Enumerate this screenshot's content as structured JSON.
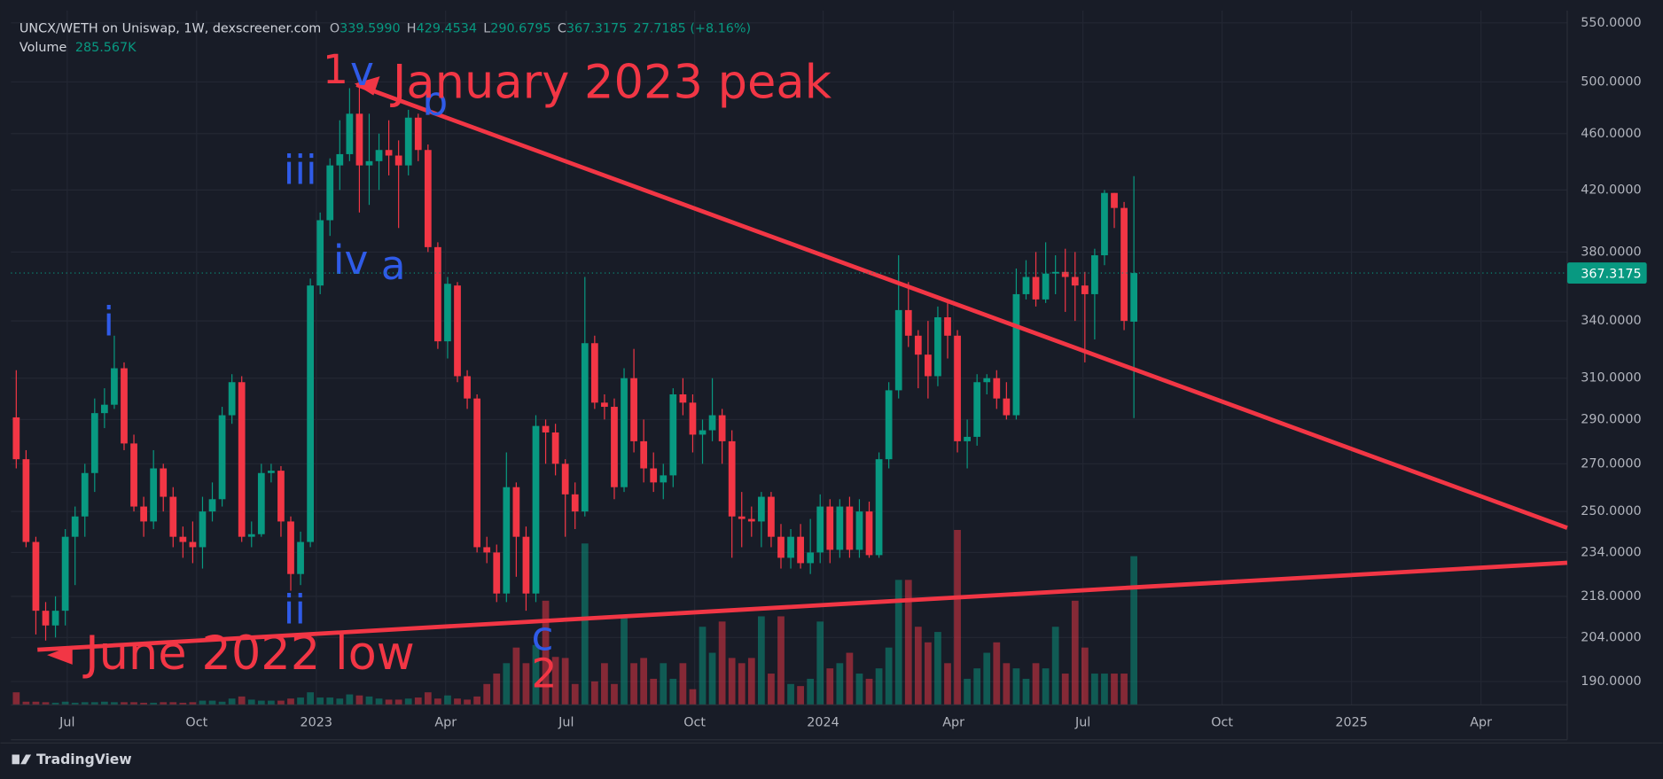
{
  "header": {
    "symbol": "UNCX/WETH on Uniswap, 1W, dexscreener.com",
    "o_label": "O",
    "open": "339.5990",
    "h_label": "H",
    "high": "429.4534",
    "l_label": "L",
    "low": "290.6795",
    "c_label": "C",
    "close": "367.3175",
    "change": "27.7185 (+8.16%)",
    "volume_label": "Volume",
    "volume": "285.567K"
  },
  "footer": {
    "brand": "TradingView"
  },
  "chart_data": {
    "type": "candlestick",
    "x": [
      0,
      1,
      2,
      3,
      4,
      5,
      6,
      7,
      8,
      9,
      10,
      11,
      12,
      13,
      14,
      15,
      16,
      17,
      18,
      19,
      20,
      21,
      22,
      23,
      24,
      25,
      26,
      27,
      28,
      29,
      30,
      31,
      32,
      33,
      34,
      35,
      36,
      37,
      38,
      39,
      40,
      41,
      42,
      43,
      44,
      45,
      46,
      47,
      48,
      49,
      50,
      51,
      52,
      53,
      54,
      55,
      56,
      57,
      58,
      59,
      60,
      61,
      62,
      63,
      64,
      65,
      66,
      67,
      68,
      69,
      70,
      71,
      72,
      73,
      74,
      75,
      76,
      77,
      78,
      79,
      80,
      81,
      82,
      83,
      84,
      85,
      86,
      87,
      88,
      89,
      90,
      91,
      92,
      93,
      94,
      95,
      96,
      97,
      98,
      99,
      100,
      101,
      102,
      103,
      104,
      105,
      106,
      107,
      108,
      109,
      110,
      111,
      112,
      113,
      114
    ],
    "open": [
      291,
      272,
      238,
      213,
      208,
      213,
      240,
      248,
      266,
      293,
      297,
      315,
      279,
      252,
      246,
      268,
      256,
      240,
      238,
      236,
      250,
      255,
      292,
      308,
      240,
      241,
      266,
      267,
      246,
      226,
      238,
      360,
      400,
      437,
      445,
      475,
      437,
      440,
      448,
      444,
      437,
      472,
      448,
      383,
      329,
      360,
      311,
      300,
      236,
      234,
      219,
      260,
      240,
      219,
      287,
      284,
      270,
      257,
      250,
      328,
      298,
      296,
      260,
      310,
      280,
      268,
      262,
      265,
      302,
      298,
      283,
      285,
      292,
      280,
      248,
      247,
      246,
      256,
      240,
      232,
      240,
      230,
      234,
      252,
      235,
      252,
      235,
      250,
      233,
      272,
      304,
      346,
      332,
      322,
      311,
      342,
      332,
      280,
      282,
      308,
      310,
      300,
      292,
      355,
      365,
      352,
      367,
      368,
      365,
      360,
      355,
      378,
      418,
      408,
      339.599
    ],
    "high": [
      314,
      276,
      240,
      216,
      218,
      243,
      252,
      270,
      300,
      305,
      332,
      318,
      283,
      256,
      276,
      270,
      260,
      244,
      246,
      256,
      262,
      296,
      312,
      311,
      246,
      270,
      270,
      269,
      248,
      242,
      364,
      405,
      442,
      470,
      495,
      500,
      475,
      460,
      470,
      455,
      478,
      475,
      452,
      386,
      365,
      362,
      314,
      302,
      240,
      237,
      275,
      262,
      244,
      292,
      290,
      288,
      272,
      262,
      365,
      332,
      302,
      300,
      315,
      325,
      290,
      275,
      270,
      305,
      310,
      302,
      290,
      310,
      295,
      285,
      258,
      252,
      258,
      258,
      245,
      243,
      245,
      247,
      257,
      255,
      255,
      256,
      255,
      254,
      275,
      308,
      378,
      362,
      335,
      340,
      348,
      352,
      335,
      290,
      312,
      312,
      314,
      308,
      370,
      375,
      380,
      386,
      378,
      382,
      380,
      368,
      382,
      420,
      418,
      412,
      429.4534
    ],
    "low": [
      268,
      236,
      205,
      203,
      204,
      208,
      222,
      240,
      258,
      286,
      295,
      276,
      250,
      240,
      243,
      250,
      236,
      232,
      230,
      228,
      246,
      252,
      288,
      238,
      236,
      240,
      262,
      240,
      220,
      222,
      236,
      355,
      390,
      420,
      440,
      405,
      410,
      420,
      430,
      395,
      430,
      440,
      380,
      325,
      320,
      308,
      295,
      234,
      230,
      216,
      216,
      225,
      213,
      216,
      270,
      265,
      240,
      243,
      248,
      295,
      290,
      255,
      258,
      275,
      262,
      258,
      255,
      260,
      292,
      275,
      270,
      280,
      270,
      232,
      236,
      240,
      236,
      236,
      228,
      228,
      228,
      226,
      230,
      230,
      232,
      232,
      232,
      232,
      232,
      268,
      300,
      326,
      305,
      300,
      306,
      320,
      275,
      268,
      278,
      302,
      295,
      290,
      290,
      352,
      348,
      350,
      355,
      345,
      340,
      318,
      330,
      372,
      395,
      335,
      290.6795
    ],
    "close": [
      272,
      238,
      213,
      208,
      213,
      240,
      248,
      266,
      293,
      297,
      315,
      279,
      252,
      246,
      268,
      256,
      240,
      238,
      236,
      250,
      255,
      292,
      308,
      240,
      241,
      266,
      267,
      246,
      226,
      238,
      360,
      400,
      437,
      445,
      475,
      437,
      440,
      448,
      444,
      437,
      472,
      448,
      383,
      329,
      361,
      311,
      300,
      236,
      234,
      219,
      260,
      240,
      219,
      287,
      284,
      270,
      257,
      250,
      328,
      298,
      296,
      260,
      310,
      280,
      268,
      262,
      265,
      302,
      298,
      283,
      285,
      292,
      280,
      248,
      247,
      246,
      256,
      240,
      232,
      240,
      230,
      234,
      252,
      235,
      252,
      235,
      250,
      233,
      272,
      304,
      346,
      332,
      322,
      311,
      342,
      332,
      280,
      282,
      308,
      310,
      300,
      292,
      355,
      365,
      352,
      367,
      368,
      365,
      360,
      355,
      378,
      418,
      408,
      340,
      367.3175
    ],
    "volume": [
      24,
      6,
      6,
      5,
      4,
      6,
      4,
      5,
      5,
      6,
      5,
      5,
      5,
      4,
      4,
      5,
      5,
      4,
      5,
      8,
      8,
      6,
      12,
      16,
      10,
      8,
      8,
      8,
      12,
      14,
      24,
      14,
      14,
      12,
      20,
      18,
      16,
      12,
      10,
      10,
      12,
      14,
      24,
      12,
      18,
      12,
      10,
      16,
      40,
      60,
      80,
      110,
      80,
      115,
      200,
      92,
      90,
      40,
      310,
      45,
      80,
      40,
      170,
      80,
      90,
      50,
      80,
      50,
      80,
      30,
      150,
      100,
      160,
      90,
      80,
      90,
      170,
      60,
      170,
      40,
      36,
      50,
      160,
      70,
      80,
      100,
      60,
      50,
      70,
      110,
      240,
      240,
      150,
      120,
      140,
      80,
      336,
      50,
      70,
      100,
      120,
      80,
      70,
      50,
      80,
      70,
      150,
      60,
      200,
      110,
      60,
      60,
      60,
      60,
      285.567
    ],
    "up_color": "#089981",
    "down_color": "#f23645",
    "log_y": true,
    "grid": true,
    "ylim": [
      183,
      561
    ],
    "yticks": [
      {
        "value": 190,
        "label": "190.0000"
      },
      {
        "value": 204,
        "label": "204.0000"
      },
      {
        "value": 218,
        "label": "218.0000"
      },
      {
        "value": 234,
        "label": "234.0000"
      },
      {
        "value": 250,
        "label": "250.0000"
      },
      {
        "value": 270,
        "label": "270.0000"
      },
      {
        "value": 290,
        "label": "290.0000"
      },
      {
        "value": 310,
        "label": "310.0000"
      },
      {
        "value": 340,
        "label": "340.0000"
      },
      {
        "value": 380,
        "label": "380.0000"
      },
      {
        "value": 420,
        "label": "420.0000"
      },
      {
        "value": 460,
        "label": "460.0000"
      },
      {
        "value": 500,
        "label": "500.0000"
      },
      {
        "value": 550,
        "label": "550.0000"
      }
    ],
    "xlim": [
      -0.54,
      158.2
    ],
    "xticks": [
      {
        "value": 5.2,
        "label": "Jul"
      },
      {
        "value": 18.4,
        "label": "Oct"
      },
      {
        "value": 30.6,
        "label": "2023"
      },
      {
        "value": 43.8,
        "label": "Apr"
      },
      {
        "value": 56.1,
        "label": "Jul"
      },
      {
        "value": 69.2,
        "label": "Oct"
      },
      {
        "value": 82.3,
        "label": "2024"
      },
      {
        "value": 95.6,
        "label": "Apr"
      },
      {
        "value": 108.8,
        "label": "Jul"
      },
      {
        "value": 123.0,
        "label": "Oct"
      },
      {
        "value": 136.2,
        "label": "2025"
      },
      {
        "value": 149.4,
        "label": "Apr"
      }
    ],
    "annotations": [
      "i",
      "ii",
      "iii",
      "iv",
      "a",
      "1",
      "v",
      "b",
      "c",
      "2",
      "January 2023 peak",
      "June 2022 low"
    ]
  }
}
